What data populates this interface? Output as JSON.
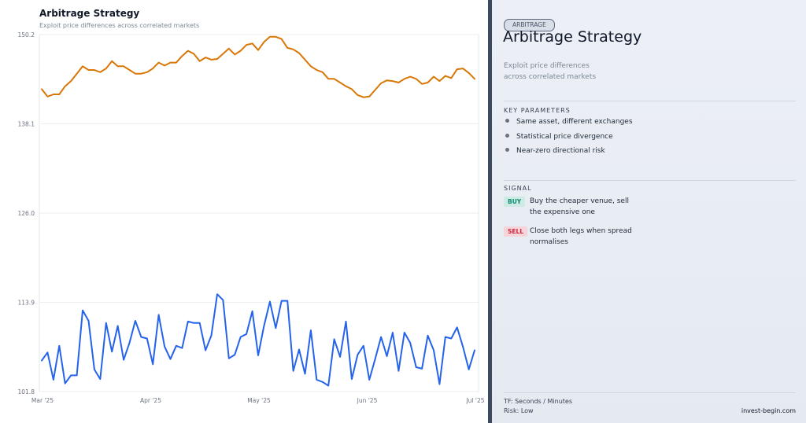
{
  "chart_data": {
    "type": "line",
    "title": "Arbitrage Strategy",
    "subtitle": "Exploit price differences across correlated markets",
    "ylim": [
      101.8,
      150.2
    ],
    "y_ticks": [
      "150.2",
      "138.1",
      "126.0",
      "113.9",
      "101.8"
    ],
    "x_ticks": [
      "Mar '25",
      "Apr '25",
      "May '25",
      "Jun '25",
      "Jul '25"
    ],
    "grid": true,
    "series": [
      {
        "color": "#d97706",
        "values": [
          142.8,
          141.8,
          142.1,
          142.1,
          143.2,
          143.9,
          144.9,
          145.9,
          145.4,
          145.4,
          145.1,
          145.6,
          146.6,
          145.9,
          145.9,
          145.4,
          144.9,
          144.9,
          145.1,
          145.6,
          146.4,
          146.0,
          146.4,
          146.4,
          147.3,
          148.0,
          147.6,
          146.6,
          147.1,
          146.8,
          146.9,
          147.6,
          148.3,
          147.5,
          148.0,
          148.8,
          149.0,
          148.1,
          149.2,
          149.9,
          149.9,
          149.6,
          148.4,
          148.2,
          147.7,
          146.8,
          145.9,
          145.4,
          145.1,
          144.2,
          144.2,
          143.7,
          143.2,
          142.8,
          142.0,
          141.7,
          141.8,
          142.7,
          143.6,
          144.0,
          143.9,
          143.7,
          144.2,
          144.5,
          144.2,
          143.5,
          143.7,
          144.5,
          143.9,
          144.6,
          144.3,
          145.5,
          145.6,
          145.0,
          144.2
        ]
      },
      {
        "color": "#2563eb",
        "values": [
          106.0,
          107.1,
          103.4,
          108.0,
          102.9,
          104.0,
          104.0,
          112.8,
          111.4,
          104.8,
          103.5,
          111.1,
          107.2,
          110.7,
          106.1,
          108.4,
          111.4,
          109.2,
          109.0,
          105.5,
          112.2,
          107.9,
          106.2,
          108.0,
          107.7,
          111.3,
          111.1,
          111.1,
          107.4,
          109.4,
          115.0,
          114.2,
          106.3,
          106.8,
          109.2,
          109.6,
          112.7,
          106.7,
          110.7,
          114.0,
          110.4,
          114.1,
          114.1,
          104.6,
          107.5,
          104.2,
          110.1,
          103.4,
          103.1,
          102.6,
          108.9,
          106.5,
          111.3,
          103.5,
          106.8,
          108.0,
          103.4,
          106.2,
          109.2,
          106.6,
          109.8,
          104.6,
          109.8,
          108.4,
          105.1,
          104.9,
          109.4,
          107.4,
          102.8,
          109.2,
          109.0,
          110.5,
          107.9,
          104.8,
          107.4
        ]
      }
    ]
  },
  "panel": {
    "tag": "ARBITRAGE",
    "title": "Arbitrage Strategy",
    "description": "Exploit price differences across correlated markets",
    "key_parameters_heading": "KEY PARAMETERS",
    "key_parameters": [
      "Same asset, different exchanges",
      "Statistical price divergence",
      "Near-zero directional risk"
    ],
    "signal_heading": "SIGNAL",
    "signals": [
      {
        "badge": "BUY",
        "text": "Buy the cheaper venue, sell the expensive one"
      },
      {
        "badge": "SELL",
        "text": "Close both legs when spread normalises"
      }
    ],
    "timeframe": "TF: Seconds / Minutes",
    "risk": "Risk: Low",
    "brand": "invest-begin.com"
  },
  "colors": {
    "accent_orange": "#d97706",
    "accent_blue": "#2563eb",
    "divider": "#3b4a5e",
    "buy": "#0f8a72",
    "sell": "#d2283d"
  }
}
